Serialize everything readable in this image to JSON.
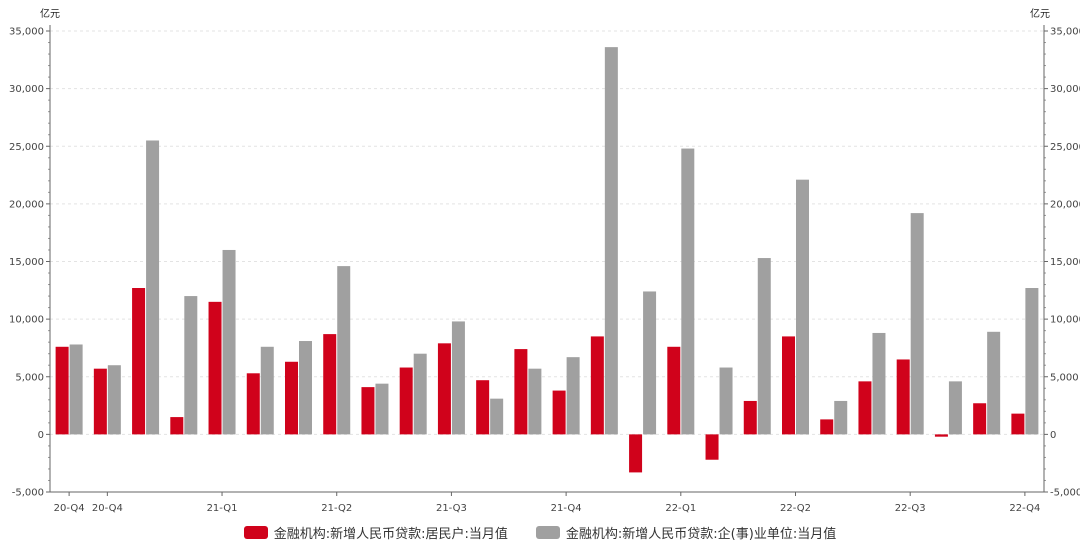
{
  "chart_data": {
    "type": "bar",
    "y_unit_left": "亿元",
    "y_unit_right": "亿元",
    "ylim": [
      -5000,
      35000
    ],
    "yticks": [
      -5000,
      0,
      5000,
      10000,
      15000,
      20000,
      25000,
      30000,
      35000
    ],
    "ytick_labels": [
      "-5,000",
      "0",
      "5,000",
      "10,000",
      "15,000",
      "20,000",
      "25,000",
      "30,000",
      "35,000"
    ],
    "grid": true,
    "legend_position": "bottom-center",
    "x_tick_labels": [
      {
        "index": 0,
        "label": "20-Q4"
      },
      {
        "index": 1,
        "label": "20-Q4"
      },
      {
        "index": 4,
        "label": "21-Q1"
      },
      {
        "index": 7,
        "label": "21-Q2"
      },
      {
        "index": 10,
        "label": "21-Q3"
      },
      {
        "index": 13,
        "label": "21-Q4"
      },
      {
        "index": 16,
        "label": "22-Q1"
      },
      {
        "index": 19,
        "label": "22-Q2"
      },
      {
        "index": 22,
        "label": "22-Q3"
      },
      {
        "index": 25,
        "label": "22-Q4"
      }
    ],
    "series": [
      {
        "name": "金融机构:新增人民币贷款:居民户:当月值",
        "color": "#d0021b",
        "values": [
          7600,
          5700,
          12700,
          1500,
          11500,
          5300,
          6300,
          8700,
          4100,
          5800,
          7900,
          4700,
          7400,
          3800,
          8500,
          -3300,
          7600,
          -2200,
          2900,
          8500,
          1300,
          4600,
          6500,
          -200,
          2700,
          1800
        ]
      },
      {
        "name": "金融机构:新增人民币贷款:企(事)业单位:当月值",
        "color": "#a0a0a0",
        "values": [
          7800,
          6000,
          25500,
          12000,
          16000,
          7600,
          8100,
          14600,
          4400,
          7000,
          9800,
          3100,
          5700,
          6700,
          33600,
          12400,
          24800,
          5800,
          15300,
          22100,
          2900,
          8800,
          19200,
          4600,
          8900,
          12700
        ]
      }
    ]
  }
}
